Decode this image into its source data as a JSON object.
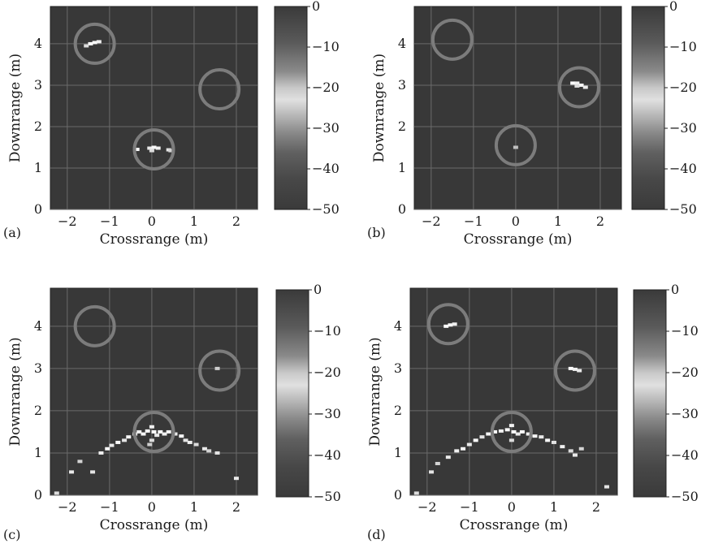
{
  "chart_data": [
    {
      "panel_label": "(a)",
      "type": "heatmap",
      "xlabel": "Crossrange (m)",
      "ylabel": "Downrange (m)",
      "xlim": [
        -2.4,
        2.5
      ],
      "ylim": [
        0,
        4.9
      ],
      "xticks": [
        "−2",
        "−1",
        "0",
        "1",
        "2"
      ],
      "yticks": [
        "0",
        "1",
        "2",
        "3",
        "4"
      ],
      "colorbar": {
        "range": [
          -50,
          0
        ],
        "ticks": [
          "0",
          "−10",
          "−20",
          "−30",
          "−40",
          "−50"
        ]
      },
      "circles": [
        {
          "x": -1.35,
          "y": 4.0
        },
        {
          "x": 1.6,
          "y": 2.9
        },
        {
          "x": 0.05,
          "y": 1.45
        }
      ],
      "points": [
        {
          "x": -1.45,
          "y": 4.0,
          "level": -12
        },
        {
          "x": -1.35,
          "y": 4.03,
          "level": -15
        },
        {
          "x": -1.25,
          "y": 4.05,
          "level": -18
        },
        {
          "x": -1.55,
          "y": 3.95,
          "level": -25
        },
        {
          "x": -0.35,
          "y": 1.45,
          "level": -10
        },
        {
          "x": -0.05,
          "y": 1.48,
          "level": -20
        },
        {
          "x": 0.05,
          "y": 1.5,
          "level": -15
        },
        {
          "x": 0.15,
          "y": 1.48,
          "level": -18
        },
        {
          "x": 0.0,
          "y": 1.42,
          "level": -25
        },
        {
          "x": 0.4,
          "y": 1.44,
          "level": -22
        },
        {
          "x": 0.45,
          "y": 1.42,
          "level": -28
        }
      ]
    },
    {
      "panel_label": "(b)",
      "type": "heatmap",
      "xlabel": "Crossrange (m)",
      "ylabel": "Downrange (m)",
      "xlim": [
        -2.4,
        2.5
      ],
      "ylim": [
        0,
        4.9
      ],
      "xticks": [
        "−2",
        "−1",
        "0",
        "1",
        "2"
      ],
      "yticks": [
        "0",
        "1",
        "2",
        "3",
        "4"
      ],
      "colorbar": {
        "range": [
          -50,
          0
        ],
        "ticks": [
          "0",
          "−10",
          "−20",
          "−30",
          "−40",
          "−50"
        ]
      },
      "circles": [
        {
          "x": -1.5,
          "y": 4.1
        },
        {
          "x": 1.5,
          "y": 2.95
        },
        {
          "x": 0.0,
          "y": 1.55
        }
      ],
      "points": [
        {
          "x": 1.35,
          "y": 3.05,
          "level": -12
        },
        {
          "x": 1.45,
          "y": 3.05,
          "level": -18
        },
        {
          "x": 1.55,
          "y": 3.0,
          "level": -15
        },
        {
          "x": 1.65,
          "y": 2.95,
          "level": -20
        },
        {
          "x": 1.45,
          "y": 2.98,
          "level": -25
        },
        {
          "x": 0.0,
          "y": 1.5,
          "level": -35
        }
      ]
    },
    {
      "panel_label": "(c)",
      "type": "heatmap",
      "xlabel": "Crossrange (m)",
      "ylabel": "Downrange (m)",
      "xlim": [
        -2.4,
        2.5
      ],
      "ylim": [
        0,
        4.9
      ],
      "xticks": [
        "−2",
        "−1",
        "0",
        "1",
        "2"
      ],
      "yticks": [
        "0",
        "1",
        "2",
        "3",
        "4"
      ],
      "colorbar": {
        "range": [
          -50,
          0
        ],
        "ticks": [
          "0",
          "−10",
          "−20",
          "−30",
          "−40",
          "−50"
        ]
      },
      "circles": [
        {
          "x": -1.35,
          "y": 4.0
        },
        {
          "x": 1.6,
          "y": 2.95
        },
        {
          "x": 0.05,
          "y": 1.5
        }
      ],
      "points": [
        {
          "x": -2.25,
          "y": 0.05,
          "level": -25
        },
        {
          "x": -1.9,
          "y": 0.55,
          "level": -20
        },
        {
          "x": -1.7,
          "y": 0.8,
          "level": -28
        },
        {
          "x": -1.4,
          "y": 0.55,
          "level": -22
        },
        {
          "x": -1.2,
          "y": 1.0,
          "level": -18
        },
        {
          "x": -1.05,
          "y": 1.1,
          "level": -15
        },
        {
          "x": -0.95,
          "y": 1.18,
          "level": -20
        },
        {
          "x": -0.8,
          "y": 1.25,
          "level": -14
        },
        {
          "x": -0.65,
          "y": 1.3,
          "level": -22
        },
        {
          "x": -0.55,
          "y": 1.38,
          "level": -16
        },
        {
          "x": -0.4,
          "y": 1.45,
          "level": -12
        },
        {
          "x": -0.3,
          "y": 1.5,
          "level": -18
        },
        {
          "x": -0.2,
          "y": 1.45,
          "level": -10
        },
        {
          "x": -0.1,
          "y": 1.52,
          "level": -14
        },
        {
          "x": 0.0,
          "y": 1.62,
          "level": -8
        },
        {
          "x": 0.05,
          "y": 1.5,
          "level": -12
        },
        {
          "x": 0.12,
          "y": 1.42,
          "level": -20
        },
        {
          "x": 0.2,
          "y": 1.5,
          "level": -14
        },
        {
          "x": 0.3,
          "y": 1.45,
          "level": -18
        },
        {
          "x": 0.4,
          "y": 1.5,
          "level": -16
        },
        {
          "x": 0.55,
          "y": 1.45,
          "level": -20
        },
        {
          "x": 0.7,
          "y": 1.4,
          "level": -15
        },
        {
          "x": 0.8,
          "y": 1.3,
          "level": -22
        },
        {
          "x": 0.9,
          "y": 1.25,
          "level": -18
        },
        {
          "x": 1.05,
          "y": 1.2,
          "level": -25
        },
        {
          "x": 1.25,
          "y": 1.1,
          "level": -20
        },
        {
          "x": 1.35,
          "y": 1.05,
          "level": -28
        },
        {
          "x": 1.55,
          "y": 1.0,
          "level": -22
        },
        {
          "x": 1.55,
          "y": 3.0,
          "level": -30
        },
        {
          "x": 2.0,
          "y": 0.4,
          "level": -20
        },
        {
          "x": 0.0,
          "y": 1.3,
          "level": -25
        },
        {
          "x": -0.05,
          "y": 1.2,
          "level": -30
        }
      ]
    },
    {
      "panel_label": "(d)",
      "type": "heatmap",
      "xlabel": "Crossrange (m)",
      "ylabel": "Downrange (m)",
      "xlim": [
        -2.4,
        2.5
      ],
      "ylim": [
        0,
        4.9
      ],
      "xticks": [
        "−2",
        "−1",
        "0",
        "1",
        "2"
      ],
      "yticks": [
        "0",
        "1",
        "2",
        "3",
        "4"
      ],
      "colorbar": {
        "range": [
          -50,
          0
        ],
        "ticks": [
          "0",
          "−10",
          "−20",
          "−30",
          "−40",
          "−50"
        ]
      },
      "circles": [
        {
          "x": -1.5,
          "y": 4.05
        },
        {
          "x": 1.5,
          "y": 2.95
        },
        {
          "x": 0.0,
          "y": 1.5
        }
      ],
      "points": [
        {
          "x": -1.55,
          "y": 4.0,
          "level": -12
        },
        {
          "x": -1.45,
          "y": 4.03,
          "level": -15
        },
        {
          "x": -1.35,
          "y": 4.05,
          "level": -18
        },
        {
          "x": 1.4,
          "y": 3.0,
          "level": -14
        },
        {
          "x": 1.5,
          "y": 2.98,
          "level": -18
        },
        {
          "x": 1.6,
          "y": 2.95,
          "level": -20
        },
        {
          "x": -2.25,
          "y": 0.05,
          "level": -25
        },
        {
          "x": -1.9,
          "y": 0.55,
          "level": -22
        },
        {
          "x": -1.75,
          "y": 0.75,
          "level": -28
        },
        {
          "x": -1.5,
          "y": 0.9,
          "level": -20
        },
        {
          "x": -1.3,
          "y": 1.05,
          "level": -18
        },
        {
          "x": -1.15,
          "y": 1.1,
          "level": -15
        },
        {
          "x": -1.0,
          "y": 1.2,
          "level": -20
        },
        {
          "x": -0.85,
          "y": 1.3,
          "level": -14
        },
        {
          "x": -0.7,
          "y": 1.38,
          "level": -22
        },
        {
          "x": -0.55,
          "y": 1.45,
          "level": -16
        },
        {
          "x": -0.4,
          "y": 1.5,
          "level": -12
        },
        {
          "x": -0.25,
          "y": 1.52,
          "level": -18
        },
        {
          "x": -0.1,
          "y": 1.55,
          "level": -10
        },
        {
          "x": 0.0,
          "y": 1.65,
          "level": -8
        },
        {
          "x": 0.05,
          "y": 1.5,
          "level": -12
        },
        {
          "x": 0.15,
          "y": 1.45,
          "level": -20
        },
        {
          "x": 0.25,
          "y": 1.5,
          "level": -14
        },
        {
          "x": 0.4,
          "y": 1.45,
          "level": -18
        },
        {
          "x": 0.55,
          "y": 1.4,
          "level": -16
        },
        {
          "x": 0.7,
          "y": 1.38,
          "level": -20
        },
        {
          "x": 0.85,
          "y": 1.3,
          "level": -15
        },
        {
          "x": 1.0,
          "y": 1.25,
          "level": -22
        },
        {
          "x": 1.2,
          "y": 1.15,
          "level": -18
        },
        {
          "x": 1.4,
          "y": 1.05,
          "level": -25
        },
        {
          "x": 1.5,
          "y": 0.95,
          "level": -20
        },
        {
          "x": 1.65,
          "y": 1.1,
          "level": -28
        },
        {
          "x": 2.25,
          "y": 0.2,
          "level": -22
        },
        {
          "x": 0.0,
          "y": 1.3,
          "level": -25
        }
      ]
    }
  ]
}
